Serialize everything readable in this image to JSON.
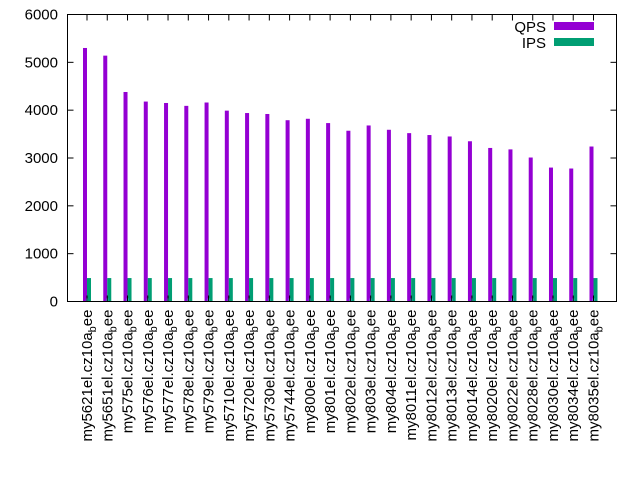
{
  "chart_data": {
    "type": "bar",
    "title": "",
    "xlabel": "",
    "ylabel": "",
    "ylim": [
      0,
      6000
    ],
    "yticks": [
      0,
      1000,
      2000,
      3000,
      4000,
      5000,
      6000
    ],
    "grid": false,
    "legend_position": "top-right",
    "categories": [
      {
        "base": "my5621el.cz10a",
        "sub": "b",
        "tail": "ee"
      },
      {
        "base": "my5651el.cz10a",
        "sub": "b",
        "tail": "ee"
      },
      {
        "base": "my575el.cz10a",
        "sub": "b",
        "tail": "ee"
      },
      {
        "base": "my576el.cz10a",
        "sub": "b",
        "tail": "ee"
      },
      {
        "base": "my577el.cz10a",
        "sub": "b",
        "tail": "ee"
      },
      {
        "base": "my578el.cz10a",
        "sub": "b",
        "tail": "ee"
      },
      {
        "base": "my579el.cz10a",
        "sub": "b",
        "tail": "ee"
      },
      {
        "base": "my5710el.cz10a",
        "sub": "b",
        "tail": "ee"
      },
      {
        "base": "my5720el.cz10a",
        "sub": "b",
        "tail": "ee"
      },
      {
        "base": "my5730el.cz10a",
        "sub": "b",
        "tail": "ee"
      },
      {
        "base": "my5744el.cz10a",
        "sub": "b",
        "tail": "ee"
      },
      {
        "base": "my800el.cz10a",
        "sub": "b",
        "tail": "ee"
      },
      {
        "base": "my801el.cz10a",
        "sub": "b",
        "tail": "ee"
      },
      {
        "base": "my802el.cz10a",
        "sub": "b",
        "tail": "ee"
      },
      {
        "base": "my803el.cz10a",
        "sub": "b",
        "tail": "ee"
      },
      {
        "base": "my804el.cz10a",
        "sub": "b",
        "tail": "ee"
      },
      {
        "base": "my8011el.cz10a",
        "sub": "b",
        "tail": "ee"
      },
      {
        "base": "my8012el.cz10a",
        "sub": "b",
        "tail": "ee"
      },
      {
        "base": "my8013el.cz10a",
        "sub": "b",
        "tail": "ee"
      },
      {
        "base": "my8014el.cz10a",
        "sub": "b",
        "tail": "ee"
      },
      {
        "base": "my8020el.cz10a",
        "sub": "b",
        "tail": "ee"
      },
      {
        "base": "my8022el.cz10a",
        "sub": "b",
        "tail": "ee"
      },
      {
        "base": "my8028el.cz10a",
        "sub": "b",
        "tail": "ee"
      },
      {
        "base": "my8030el.cz10a",
        "sub": "b",
        "tail": "ee"
      },
      {
        "base": "my8034el.cz10a",
        "sub": "b",
        "tail": "ee"
      },
      {
        "base": "my8035el.cz10a",
        "sub": "b",
        "tail": "ee"
      }
    ],
    "series": [
      {
        "name": "QPS",
        "color": "#9400d3",
        "values": [
          5300,
          5140,
          4380,
          4180,
          4150,
          4090,
          4160,
          3990,
          3940,
          3920,
          3790,
          3820,
          3730,
          3570,
          3680,
          3590,
          3520,
          3480,
          3450,
          3350,
          3210,
          3180,
          3010,
          2800,
          2780,
          3240
        ]
      },
      {
        "name": "IPS",
        "color": "#009e73",
        "values": [
          490,
          490,
          490,
          490,
          490,
          490,
          490,
          490,
          490,
          490,
          490,
          490,
          490,
          490,
          490,
          490,
          490,
          490,
          490,
          490,
          490,
          490,
          490,
          490,
          490,
          490
        ]
      },
      {
        "name": "",
        "color": "#56b4e9",
        "values": [
          65,
          65,
          65,
          65,
          65,
          65,
          65,
          65,
          65,
          65,
          65,
          65,
          65,
          65,
          65,
          65,
          65,
          65,
          65,
          65,
          65,
          65,
          65,
          65,
          65,
          65
        ]
      }
    ]
  }
}
